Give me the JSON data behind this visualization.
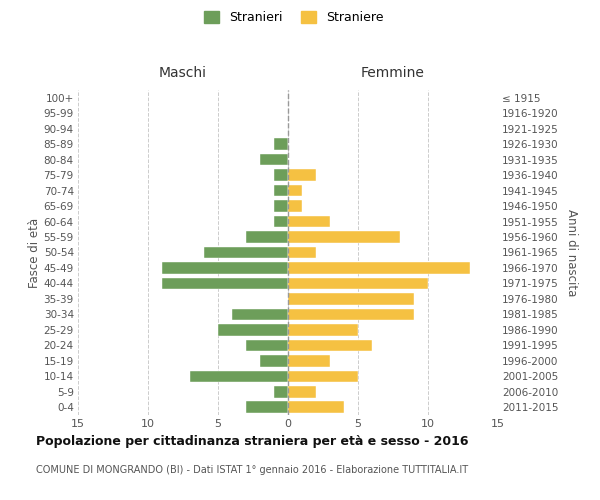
{
  "age_groups": [
    "100+",
    "95-99",
    "90-94",
    "85-89",
    "80-84",
    "75-79",
    "70-74",
    "65-69",
    "60-64",
    "55-59",
    "50-54",
    "45-49",
    "40-44",
    "35-39",
    "30-34",
    "25-29",
    "20-24",
    "15-19",
    "10-14",
    "5-9",
    "0-4"
  ],
  "birth_years": [
    "≤ 1915",
    "1916-1920",
    "1921-1925",
    "1926-1930",
    "1931-1935",
    "1936-1940",
    "1941-1945",
    "1946-1950",
    "1951-1955",
    "1956-1960",
    "1961-1965",
    "1966-1970",
    "1971-1975",
    "1976-1980",
    "1981-1985",
    "1986-1990",
    "1991-1995",
    "1996-2000",
    "2001-2005",
    "2006-2010",
    "2011-2015"
  ],
  "males": [
    0,
    0,
    0,
    1,
    2,
    1,
    1,
    1,
    1,
    3,
    6,
    9,
    9,
    0,
    4,
    5,
    3,
    2,
    7,
    1,
    3
  ],
  "females": [
    0,
    0,
    0,
    0,
    0,
    2,
    1,
    1,
    3,
    8,
    2,
    13,
    10,
    9,
    9,
    5,
    6,
    3,
    5,
    2,
    4
  ],
  "male_color": "#6d9e5a",
  "female_color": "#f5c142",
  "male_label": "Stranieri",
  "female_label": "Straniere",
  "title": "Popolazione per cittadinanza straniera per età e sesso - 2016",
  "subtitle": "COMUNE DI MONGRANDO (BI) - Dati ISTAT 1° gennaio 2016 - Elaborazione TUTTITALIA.IT",
  "xlabel_left": "Maschi",
  "xlabel_right": "Femmine",
  "ylabel_left": "Fasce di età",
  "ylabel_right": "Anni di nascita",
  "xlim": 15,
  "background_color": "#ffffff",
  "grid_color": "#cccccc"
}
